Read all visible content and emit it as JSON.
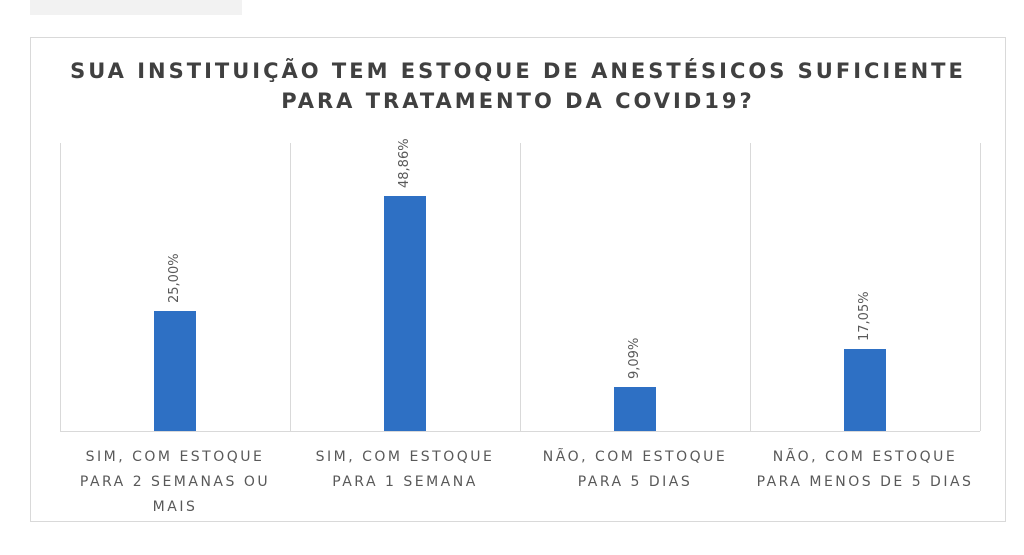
{
  "chart_data": {
    "type": "bar",
    "title": "SUA INSTITUIÇÃO TEM ESTOQUE DE ANESTÉSICOS SUFICIENTE PARA TRATAMENTO DA COVID19?",
    "categories": [
      "SIM, COM ESTOQUE PARA 2 SEMANAS OU MAIS",
      "SIM, COM ESTOQUE PARA 1 SEMANA",
      "NÃO, COM ESTOQUE PARA 5 DIAS",
      "NÃO, COM ESTOQUE PARA MENOS DE 5 DIAS"
    ],
    "values": [
      25.0,
      48.86,
      9.09,
      17.05
    ],
    "value_labels": [
      "25,00%",
      "48,86%",
      "9,09%",
      "17,05%"
    ],
    "color": "#2e70c4",
    "ylim": [
      0,
      60
    ]
  }
}
